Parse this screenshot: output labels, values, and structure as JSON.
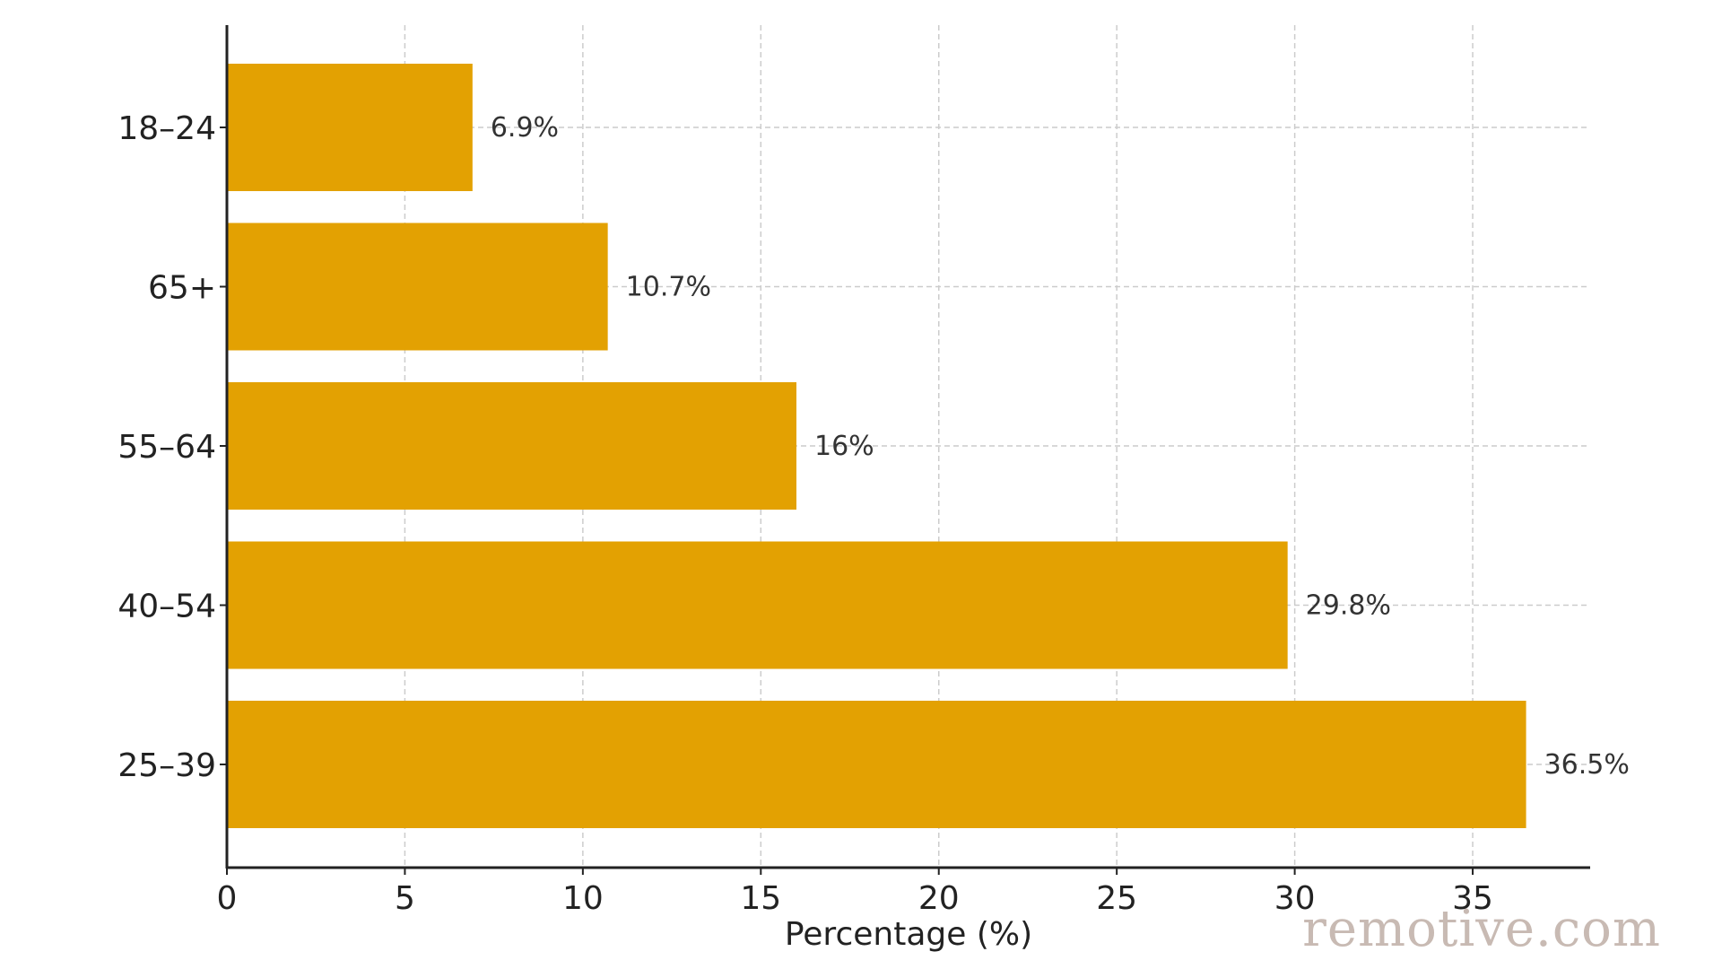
{
  "watermark": "remotive.com",
  "colors": {
    "bar": "#e3a102",
    "grid": "#cccccc",
    "axis": "#222222",
    "text": "#222222",
    "label": "#333333"
  },
  "chart_data": {
    "type": "bar",
    "orientation": "horizontal",
    "categories": [
      "18–24",
      "65+",
      "55–64",
      "40–54",
      "25–39"
    ],
    "values": [
      6.9,
      10.7,
      16,
      29.8,
      36.5
    ],
    "data_labels": [
      "6.9%",
      "10.7%",
      "16%",
      "29.8%",
      "36.5%"
    ],
    "title": "",
    "xlabel": "Percentage (%)",
    "ylabel": "",
    "xlim": [
      0,
      38.3
    ],
    "xticks": [
      0,
      5,
      10,
      15,
      20,
      25,
      30,
      35
    ],
    "xtick_labels": [
      "0",
      "5",
      "10",
      "15",
      "20",
      "25",
      "30",
      "35"
    ],
    "grid": true,
    "legend": "none"
  }
}
